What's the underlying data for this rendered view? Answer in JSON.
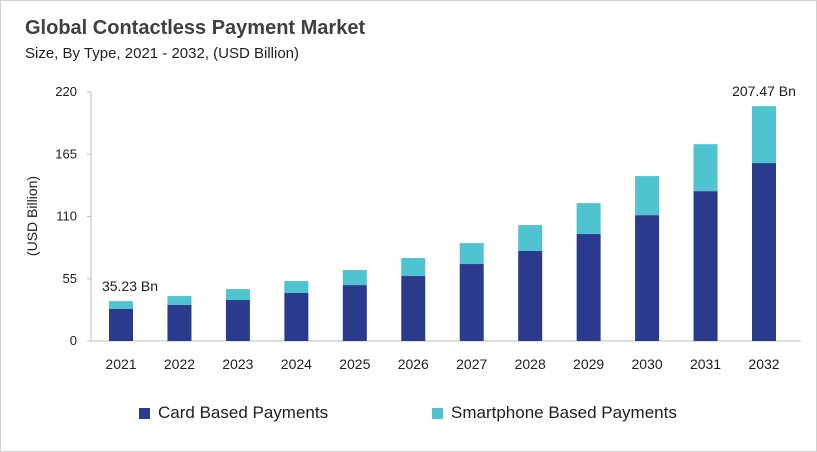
{
  "chart_data": {
    "type": "bar",
    "stacked": true,
    "title": "Global Contactless Payment Market",
    "subtitle": "Size, By Type, 2021 - 2032, (USD Billion)",
    "xlabel": "",
    "ylabel": "(USD Billion)",
    "ylim": [
      0,
      220
    ],
    "yticks": [
      0,
      55,
      110,
      165,
      220
    ],
    "grid": false,
    "legend": "bottom",
    "categories": [
      "2021",
      "2022",
      "2023",
      "2024",
      "2025",
      "2026",
      "2027",
      "2028",
      "2029",
      "2030",
      "2031",
      "2032"
    ],
    "series": [
      {
        "name": "Card Based Payments",
        "color": "#2a3a8c",
        "values": [
          28.3,
          31.8,
          36.2,
          42.4,
          49.4,
          57.4,
          68.0,
          79.5,
          94.5,
          111.2,
          132.4,
          157.2
        ]
      },
      {
        "name": "Smartphone Based Payments",
        "color": "#4fc3cf",
        "values": [
          6.93,
          7.9,
          9.7,
          10.6,
          13.3,
          15.9,
          18.5,
          22.9,
          27.3,
          34.5,
          41.5,
          50.27
        ]
      }
    ],
    "annotations": [
      {
        "category": "2021",
        "text": "35.23 Bn"
      },
      {
        "category": "2032",
        "text": "207.47 Bn"
      }
    ]
  }
}
